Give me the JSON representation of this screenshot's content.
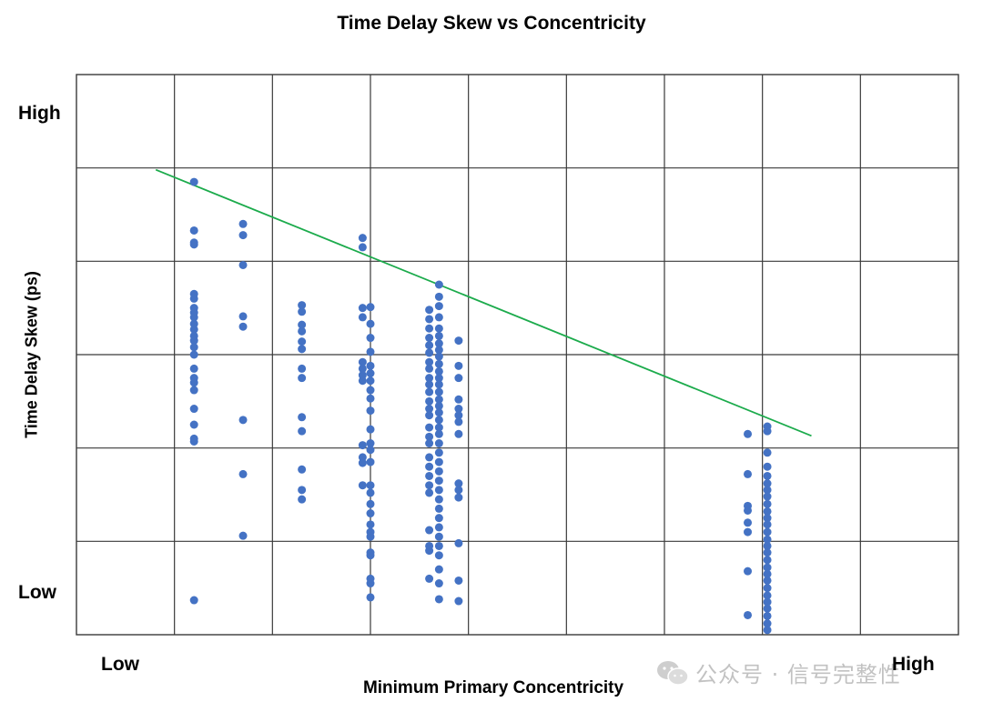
{
  "chart_data": {
    "type": "scatter",
    "title": "Time Delay Skew vs Concentricity",
    "xlabel": "Minimum Primary Concentricity",
    "ylabel": "Time Delay Skew (ps)",
    "x_axis_labels": {
      "low": "Low",
      "high": "High"
    },
    "y_axis_labels": {
      "low": "Low",
      "high": "High"
    },
    "xlim": [
      0,
      9
    ],
    "ylim": [
      0,
      6
    ],
    "grid": true,
    "x_grid_divisions": 9,
    "y_grid_divisions": 6,
    "trend_line": {
      "color": "#1cab4c",
      "points": [
        [
          0.81,
          4.98
        ],
        [
          7.5,
          2.13
        ]
      ]
    },
    "series": [
      {
        "name": "measurements",
        "color": "#4472c4",
        "points": [
          [
            1.2,
            4.85
          ],
          [
            1.2,
            4.33
          ],
          [
            1.2,
            4.2
          ],
          [
            1.2,
            4.18
          ],
          [
            1.2,
            3.65
          ],
          [
            1.2,
            3.6
          ],
          [
            1.2,
            3.5
          ],
          [
            1.2,
            3.45
          ],
          [
            1.2,
            3.4
          ],
          [
            1.2,
            3.33
          ],
          [
            1.2,
            3.27
          ],
          [
            1.2,
            3.2
          ],
          [
            1.2,
            3.15
          ],
          [
            1.2,
            3.08
          ],
          [
            1.2,
            3.0
          ],
          [
            1.2,
            2.85
          ],
          [
            1.2,
            2.75
          ],
          [
            1.2,
            2.7
          ],
          [
            1.2,
            2.62
          ],
          [
            1.2,
            2.42
          ],
          [
            1.2,
            2.25
          ],
          [
            1.2,
            2.1
          ],
          [
            1.2,
            2.07
          ],
          [
            1.2,
            0.37
          ],
          [
            1.7,
            4.4
          ],
          [
            1.7,
            4.28
          ],
          [
            1.7,
            3.96
          ],
          [
            1.7,
            3.41
          ],
          [
            1.7,
            3.3
          ],
          [
            1.7,
            2.3
          ],
          [
            1.7,
            1.72
          ],
          [
            1.7,
            1.06
          ],
          [
            2.3,
            3.53
          ],
          [
            2.3,
            3.46
          ],
          [
            2.3,
            3.32
          ],
          [
            2.3,
            3.25
          ],
          [
            2.3,
            3.14
          ],
          [
            2.3,
            3.06
          ],
          [
            2.3,
            2.85
          ],
          [
            2.3,
            2.75
          ],
          [
            2.3,
            2.33
          ],
          [
            2.3,
            2.18
          ],
          [
            2.3,
            1.77
          ],
          [
            2.3,
            1.55
          ],
          [
            2.3,
            1.45
          ],
          [
            2.92,
            4.25
          ],
          [
            2.92,
            4.15
          ],
          [
            2.92,
            3.5
          ],
          [
            2.92,
            3.4
          ],
          [
            2.92,
            2.92
          ],
          [
            2.92,
            2.85
          ],
          [
            2.92,
            2.78
          ],
          [
            2.92,
            2.72
          ],
          [
            2.92,
            2.03
          ],
          [
            2.92,
            1.9
          ],
          [
            2.92,
            1.84
          ],
          [
            2.92,
            1.6
          ],
          [
            3.0,
            3.51
          ],
          [
            3.0,
            3.33
          ],
          [
            3.0,
            3.18
          ],
          [
            3.0,
            3.03
          ],
          [
            3.0,
            2.88
          ],
          [
            3.0,
            2.8
          ],
          [
            3.0,
            2.72
          ],
          [
            3.0,
            2.62
          ],
          [
            3.0,
            2.53
          ],
          [
            3.0,
            2.4
          ],
          [
            3.0,
            2.2
          ],
          [
            3.0,
            2.05
          ],
          [
            3.0,
            1.98
          ],
          [
            3.0,
            1.85
          ],
          [
            3.0,
            1.6
          ],
          [
            3.0,
            1.52
          ],
          [
            3.0,
            1.4
          ],
          [
            3.0,
            1.3
          ],
          [
            3.0,
            1.18
          ],
          [
            3.0,
            1.1
          ],
          [
            3.0,
            1.05
          ],
          [
            3.0,
            0.88
          ],
          [
            3.0,
            0.85
          ],
          [
            3.0,
            0.6
          ],
          [
            3.0,
            0.55
          ],
          [
            3.0,
            0.4
          ],
          [
            3.6,
            3.48
          ],
          [
            3.6,
            3.38
          ],
          [
            3.6,
            3.28
          ],
          [
            3.6,
            3.18
          ],
          [
            3.6,
            3.1
          ],
          [
            3.6,
            3.02
          ],
          [
            3.6,
            2.92
          ],
          [
            3.6,
            2.85
          ],
          [
            3.6,
            2.75
          ],
          [
            3.6,
            2.68
          ],
          [
            3.6,
            2.6
          ],
          [
            3.6,
            2.5
          ],
          [
            3.6,
            2.42
          ],
          [
            3.6,
            2.35
          ],
          [
            3.6,
            2.22
          ],
          [
            3.6,
            2.12
          ],
          [
            3.6,
            2.05
          ],
          [
            3.6,
            1.9
          ],
          [
            3.6,
            1.8
          ],
          [
            3.6,
            1.7
          ],
          [
            3.6,
            1.6
          ],
          [
            3.6,
            1.52
          ],
          [
            3.6,
            1.12
          ],
          [
            3.6,
            0.95
          ],
          [
            3.6,
            0.9
          ],
          [
            3.6,
            0.6
          ],
          [
            3.7,
            3.75
          ],
          [
            3.7,
            3.62
          ],
          [
            3.7,
            3.52
          ],
          [
            3.7,
            3.4
          ],
          [
            3.7,
            3.28
          ],
          [
            3.7,
            3.2
          ],
          [
            3.7,
            3.12
          ],
          [
            3.7,
            3.05
          ],
          [
            3.7,
            2.98
          ],
          [
            3.7,
            2.9
          ],
          [
            3.7,
            2.82
          ],
          [
            3.7,
            2.75
          ],
          [
            3.7,
            2.68
          ],
          [
            3.7,
            2.6
          ],
          [
            3.7,
            2.52
          ],
          [
            3.7,
            2.45
          ],
          [
            3.7,
            2.38
          ],
          [
            3.7,
            2.3
          ],
          [
            3.7,
            2.22
          ],
          [
            3.7,
            2.15
          ],
          [
            3.7,
            2.05
          ],
          [
            3.7,
            1.95
          ],
          [
            3.7,
            1.85
          ],
          [
            3.7,
            1.75
          ],
          [
            3.7,
            1.65
          ],
          [
            3.7,
            1.55
          ],
          [
            3.7,
            1.45
          ],
          [
            3.7,
            1.35
          ],
          [
            3.7,
            1.25
          ],
          [
            3.7,
            1.15
          ],
          [
            3.7,
            1.05
          ],
          [
            3.7,
            0.95
          ],
          [
            3.7,
            0.85
          ],
          [
            3.7,
            0.7
          ],
          [
            3.7,
            0.55
          ],
          [
            3.7,
            0.38
          ],
          [
            3.9,
            3.15
          ],
          [
            3.9,
            2.88
          ],
          [
            3.9,
            2.75
          ],
          [
            3.9,
            2.52
          ],
          [
            3.9,
            2.42
          ],
          [
            3.9,
            2.35
          ],
          [
            3.9,
            2.28
          ],
          [
            3.9,
            2.15
          ],
          [
            3.9,
            1.62
          ],
          [
            3.9,
            1.55
          ],
          [
            3.9,
            1.47
          ],
          [
            3.9,
            0.98
          ],
          [
            3.9,
            0.58
          ],
          [
            3.9,
            0.36
          ],
          [
            6.85,
            2.15
          ],
          [
            6.85,
            1.72
          ],
          [
            6.85,
            1.38
          ],
          [
            6.85,
            1.33
          ],
          [
            6.85,
            1.2
          ],
          [
            6.85,
            1.1
          ],
          [
            6.85,
            0.68
          ],
          [
            6.85,
            0.21
          ],
          [
            7.05,
            2.23
          ],
          [
            7.05,
            2.18
          ],
          [
            7.05,
            1.95
          ],
          [
            7.05,
            1.8
          ],
          [
            7.05,
            1.7
          ],
          [
            7.05,
            1.62
          ],
          [
            7.05,
            1.55
          ],
          [
            7.05,
            1.48
          ],
          [
            7.05,
            1.4
          ],
          [
            7.05,
            1.32
          ],
          [
            7.05,
            1.25
          ],
          [
            7.05,
            1.18
          ],
          [
            7.05,
            1.1
          ],
          [
            7.05,
            1.02
          ],
          [
            7.05,
            0.95
          ],
          [
            7.05,
            0.88
          ],
          [
            7.05,
            0.8
          ],
          [
            7.05,
            0.72
          ],
          [
            7.05,
            0.65
          ],
          [
            7.05,
            0.58
          ],
          [
            7.05,
            0.5
          ],
          [
            7.05,
            0.42
          ],
          [
            7.05,
            0.35
          ],
          [
            7.05,
            0.28
          ],
          [
            7.05,
            0.2
          ],
          [
            7.05,
            0.12
          ],
          [
            7.05,
            0.05
          ]
        ]
      }
    ]
  },
  "watermark": {
    "text": "公众号 · 信号完整性",
    "icon": "wechat-icon"
  }
}
